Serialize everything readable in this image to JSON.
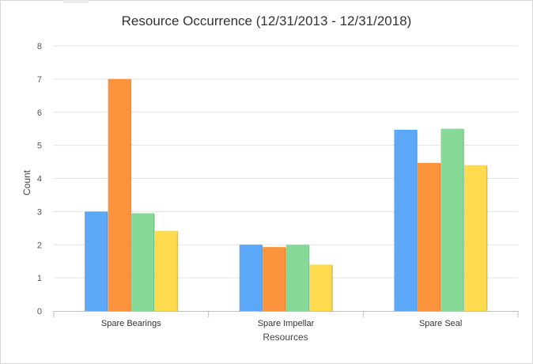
{
  "chart_data": {
    "type": "bar",
    "title": "Resource Occurrence (12/31/2013 - 12/31/2018)",
    "xlabel": "Resources",
    "ylabel": "Count",
    "categories": [
      "Spare Bearings",
      "Spare Impellar",
      "Spare Seal"
    ],
    "ylim": [
      0,
      8
    ],
    "yticks": [
      "0",
      "1",
      "2",
      "3",
      "4",
      "5",
      "6",
      "7",
      "8"
    ],
    "grid": true,
    "legend": "none",
    "series": [
      {
        "color": "#5ba8f8",
        "values": [
          3,
          2,
          5.47
        ]
      },
      {
        "color": "#fb923c",
        "values": [
          7,
          1.93,
          4.47
        ]
      },
      {
        "color": "#86d997",
        "values": [
          2.95,
          2,
          5.5
        ]
      },
      {
        "color": "#fcdb4e",
        "values": [
          2.42,
          1.4,
          4.4
        ]
      }
    ]
  }
}
